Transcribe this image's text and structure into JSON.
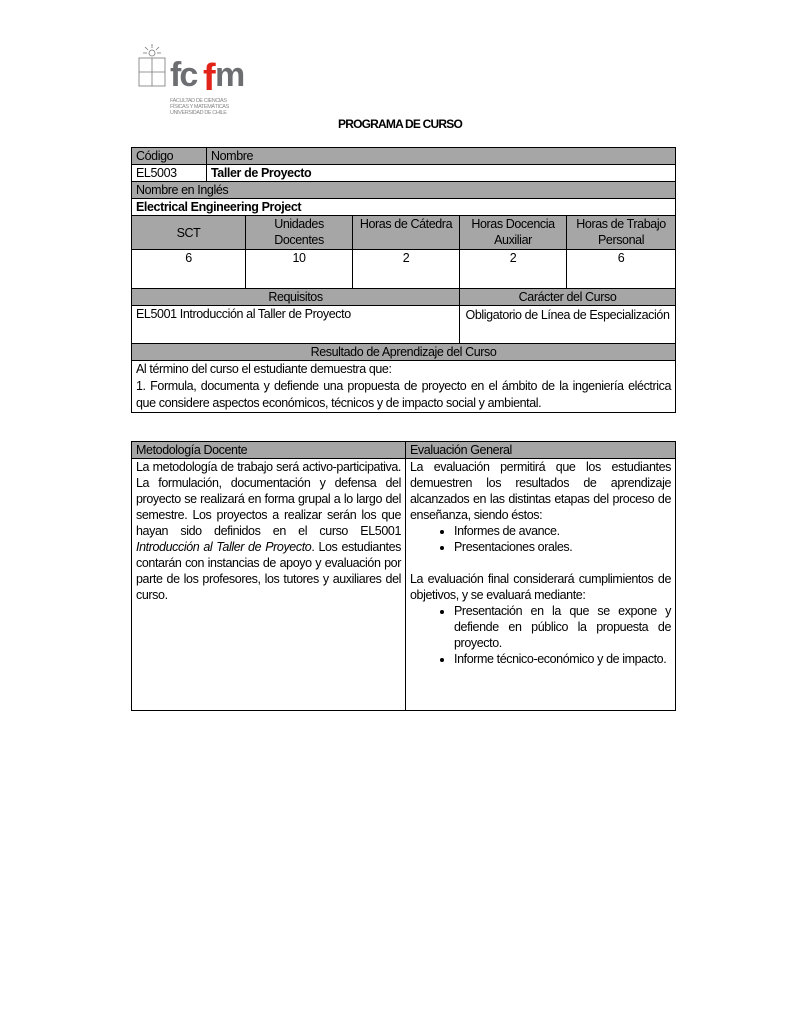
{
  "header": {
    "logo_text": "fcfm",
    "logo_subtitle": [
      "FACULTAD DE CIENCIAS",
      "FÍSICAS Y MATEMÁTICAS",
      "UNIVERSIDAD DE CHILE"
    ],
    "title": "PROGRAMA DE CURSO"
  },
  "course": {
    "codigo_label": "Código",
    "nombre_label": "Nombre",
    "codigo": "EL5003",
    "nombre": "Taller de Proyecto",
    "ingles_label": "Nombre en Inglés",
    "ingles": "Electrical Engineering Project",
    "hours_headers": [
      "SCT",
      "Unidades Docentes",
      "Horas de Cátedra",
      "Horas Docencia Auxiliar",
      "Horas de Trabajo Personal"
    ],
    "hours_values": [
      "6",
      "10",
      "2",
      "2",
      "6"
    ],
    "requisitos_label": "Requisitos",
    "caracter_label": "Carácter del Curso",
    "requisitos": "EL5001 Introducción al Taller de Proyecto",
    "caracter": "Obligatorio de Línea de Especialización",
    "resultado_label": "Resultado de Aprendizaje del Curso",
    "resultado_intro": "Al término del curso el estudiante demuestra que:",
    "resultado_1": "1. Formula, documenta y defiende una propuesta de proyecto en el ámbito de la ingeniería eléctrica que considere aspectos económicos, técnicos y de impacto social y ambiental."
  },
  "method": {
    "metodologia_label": "Metodología Docente",
    "evaluacion_label": "Evaluación General",
    "metodologia_a": "La metodología de trabajo será activo-participativa. La formulación, documentación y defensa del proyecto se realizará en forma grupal a lo largo del semestre. Los proyectos a realizar serán los que hayan sido definidos en el curso EL5001 ",
    "metodologia_italic": "Introducción al Taller de Proyecto",
    "metodologia_b": ". Los estudiantes contarán con instancias de apoyo y evaluación por parte de los profesores, los tutores y auxiliares del curso.",
    "eval_intro": "La evaluación permitirá que los estudiantes demuestren los resultados de aprendizaje alcanzados en las distintas etapas del proceso de enseñanza, siendo éstos:",
    "eval_items": [
      "Informes de avance.",
      "Presentaciones orales."
    ],
    "eval_final": "La evaluación final considerará cumplimientos de objetivos, y se evaluará mediante:",
    "final_items": [
      "Presentación en la que se expone y defiende en público la propuesta de proyecto.",
      "Informe técnico-económico y de impacto."
    ]
  },
  "colors": {
    "header_gray": "#a6a6a6",
    "logo_red": "#e2231a",
    "logo_gray": "#6d6e71"
  }
}
